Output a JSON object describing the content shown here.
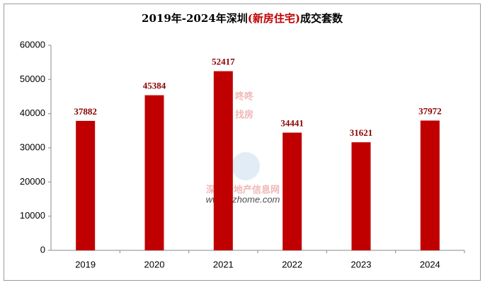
{
  "chart_data": {
    "type": "bar",
    "title": [
      "2019年-2024年深圳",
      "(新房住宅)",
      "成交套数"
    ],
    "categories": [
      "2019",
      "2020",
      "2021",
      "2022",
      "2023",
      "2024"
    ],
    "values": [
      37882,
      45384,
      52417,
      34441,
      31621,
      37972
    ],
    "color": "#c00000",
    "ylim": [
      0,
      60000
    ],
    "yticks": [
      0,
      10000,
      20000,
      30000,
      40000,
      50000,
      60000
    ],
    "grid": false,
    "watermark": [
      "咚咚",
      "找房",
      "深圳房地产信息网",
      "www.szhome.com"
    ]
  }
}
